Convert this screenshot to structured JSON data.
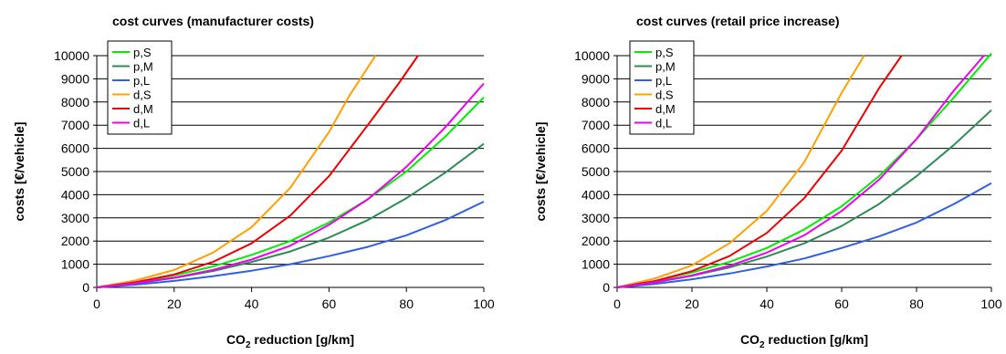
{
  "chart_data": [
    {
      "type": "line",
      "title": "cost curves (manufacturer costs)",
      "xlabel_main": "CO",
      "xlabel_sub": "2",
      "xlabel_rest": " reduction [g/km]",
      "ylabel": "costs [€/vehicle]",
      "xlim": [
        0,
        100
      ],
      "ylim": [
        0,
        10000
      ],
      "xticks": [
        "0",
        "20",
        "40",
        "60",
        "80",
        "100"
      ],
      "yticks": [
        "0",
        "1000",
        "2000",
        "3000",
        "4000",
        "5000",
        "6000",
        "7000",
        "8000",
        "9000",
        "10000"
      ],
      "grid": "horizontal",
      "legend": "top-left",
      "series": [
        {
          "name": "p,S",
          "color": "#00ee00",
          "x": [
            0,
            10,
            20,
            30,
            40,
            50,
            60,
            70,
            80,
            90,
            100
          ],
          "y": [
            0,
            220,
            520,
            900,
            1400,
            2000,
            2800,
            3800,
            5000,
            6500,
            8200
          ]
        },
        {
          "name": "p,M",
          "color": "#2e8b57",
          "x": [
            0,
            10,
            20,
            30,
            40,
            50,
            60,
            70,
            80,
            90,
            100
          ],
          "y": [
            0,
            170,
            410,
            700,
            1100,
            1550,
            2150,
            2900,
            3850,
            4950,
            6200
          ]
        },
        {
          "name": "p,L",
          "color": "#3060e0",
          "x": [
            0,
            10,
            20,
            30,
            40,
            50,
            60,
            70,
            80,
            90,
            100
          ],
          "y": [
            0,
            120,
            280,
            480,
            720,
            1000,
            1350,
            1750,
            2250,
            2900,
            3700
          ]
        },
        {
          "name": "d,S",
          "color": "#ffa000",
          "x": [
            0,
            10,
            20,
            30,
            40,
            50,
            60,
            65,
            72
          ],
          "y": [
            0,
            300,
            750,
            1500,
            2600,
            4300,
            6700,
            8200,
            10000
          ]
        },
        {
          "name": "d,M",
          "color": "#ee0000",
          "x": [
            0,
            10,
            20,
            30,
            40,
            50,
            60,
            70,
            78,
            83
          ],
          "y": [
            0,
            220,
            560,
            1100,
            1900,
            3100,
            4800,
            7000,
            8800,
            10000
          ]
        },
        {
          "name": "d,L",
          "color": "#ee00ee",
          "x": [
            0,
            10,
            20,
            30,
            40,
            50,
            60,
            70,
            80,
            90,
            100
          ],
          "y": [
            0,
            180,
            420,
            750,
            1200,
            1800,
            2700,
            3800,
            5200,
            6900,
            8800
          ]
        }
      ]
    },
    {
      "type": "line",
      "title": "cost curves (retail price increase)",
      "xlabel_main": "CO",
      "xlabel_sub": "2",
      "xlabel_rest": " reduction [g/km]",
      "ylabel": "costs [€/vehicle]",
      "xlim": [
        0,
        100
      ],
      "ylim": [
        0,
        10000
      ],
      "xticks": [
        "0",
        "20",
        "40",
        "60",
        "80",
        "100"
      ],
      "yticks": [
        "0",
        "1000",
        "2000",
        "3000",
        "4000",
        "5000",
        "6000",
        "7000",
        "8000",
        "9000",
        "10000"
      ],
      "grid": "horizontal",
      "legend": "top-left",
      "series": [
        {
          "name": "p,S",
          "color": "#00ee00",
          "x": [
            0,
            10,
            20,
            30,
            40,
            50,
            60,
            70,
            80,
            90,
            100
          ],
          "y": [
            0,
            270,
            640,
            1100,
            1700,
            2500,
            3500,
            4800,
            6400,
            8200,
            10100
          ]
        },
        {
          "name": "p,M",
          "color": "#2e8b57",
          "x": [
            0,
            10,
            20,
            30,
            40,
            50,
            60,
            70,
            80,
            90,
            100
          ],
          "y": [
            0,
            210,
            500,
            860,
            1330,
            1900,
            2650,
            3600,
            4800,
            6150,
            7650
          ]
        },
        {
          "name": "p,L",
          "color": "#3060e0",
          "x": [
            0,
            10,
            20,
            30,
            40,
            50,
            60,
            70,
            80,
            90,
            100
          ],
          "y": [
            0,
            150,
            350,
            600,
            900,
            1250,
            1700,
            2200,
            2800,
            3600,
            4500
          ]
        },
        {
          "name": "d,S",
          "color": "#ffa000",
          "x": [
            0,
            10,
            20,
            30,
            40,
            50,
            60,
            66
          ],
          "y": [
            0,
            380,
            950,
            1900,
            3300,
            5400,
            8400,
            10000
          ]
        },
        {
          "name": "d,M",
          "color": "#ee0000",
          "x": [
            0,
            10,
            20,
            30,
            40,
            50,
            60,
            70,
            76
          ],
          "y": [
            0,
            270,
            700,
            1350,
            2350,
            3850,
            5900,
            8600,
            10000
          ]
        },
        {
          "name": "d,L",
          "color": "#ee00ee",
          "x": [
            0,
            10,
            20,
            30,
            40,
            50,
            60,
            70,
            80,
            90,
            98
          ],
          "y": [
            0,
            220,
            520,
            930,
            1500,
            2250,
            3300,
            4650,
            6400,
            8500,
            10000
          ]
        }
      ]
    }
  ]
}
